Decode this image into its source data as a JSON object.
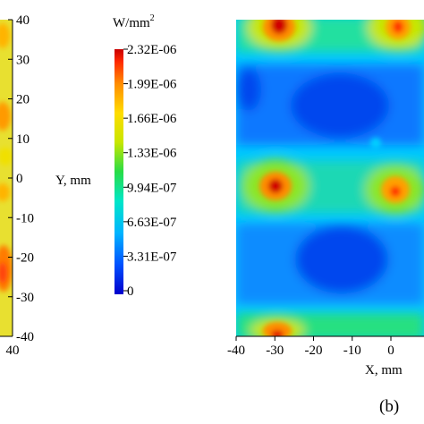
{
  "chart_data": [
    {
      "type": "heatmap",
      "panel": "left (cropped)",
      "ylabel": "Y, mm",
      "yticks": [
        "40",
        "30",
        "20",
        "10",
        "0",
        "-10",
        "-20",
        "-30",
        "-40"
      ],
      "ylim": [
        -40,
        40
      ],
      "xticks_visible": [
        "40"
      ],
      "grid": false
    },
    {
      "type": "heatmap",
      "panel": "(b)",
      "panel_label": "(b)",
      "xlabel": "X, mm",
      "xticks": [
        "-40",
        "-30",
        "-20",
        "-10",
        "0"
      ],
      "xlim": [
        -40,
        40
      ],
      "ylim": [
        -40,
        40
      ],
      "grid": false,
      "hotspots": [
        {
          "x": -30,
          "y": 40,
          "value": 2.32e-06
        },
        {
          "x": 0,
          "y": 40,
          "value": 2e-06
        },
        {
          "x": -30,
          "y": 0,
          "value": 2.32e-06
        },
        {
          "x": 0,
          "y": 0,
          "value": 2.1e-06
        },
        {
          "x": -30,
          "y": -40,
          "value": 2e-06
        }
      ],
      "cold_regions": [
        {
          "x": -15,
          "y": 22,
          "value": 2e-07
        },
        {
          "x": -15,
          "y": -22,
          "value": 2e-07
        }
      ]
    }
  ],
  "colorbar": {
    "unit_text": "W/mm",
    "unit_superscript": "2",
    "tick_labels": [
      "2.32E-06",
      "1.99E-06",
      "1.66E-06",
      "1.33E-06",
      "9.94E-07",
      "6.63E-07",
      "3.31E-07",
      "0"
    ],
    "min": 0,
    "max": 2.32e-06,
    "colors": [
      "#0000cc",
      "#0050ff",
      "#00b4ff",
      "#00e6c8",
      "#28dc46",
      "#c8e600",
      "#ffdc00",
      "#ff8c00",
      "#ff2800",
      "#c80000"
    ]
  }
}
